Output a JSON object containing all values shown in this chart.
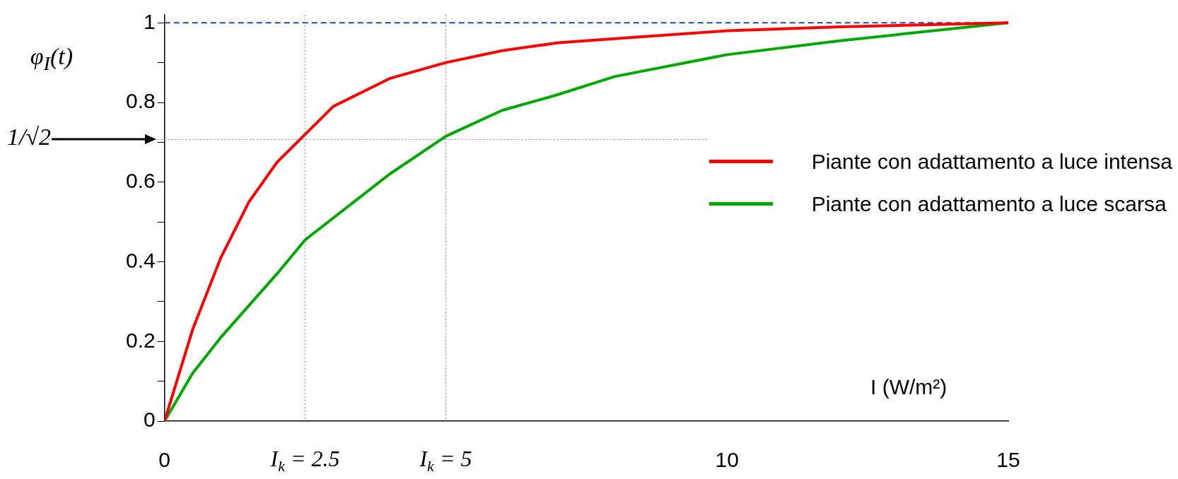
{
  "chart_data": {
    "type": "line",
    "xlabel": "I (W/m²)",
    "ylabel": "φ$_{I}$(t)",
    "xlim": [
      0,
      15
    ],
    "xticks": [
      0,
      {
        "value": 2.5,
        "label": "I$_{k}$ = 2.5"
      },
      {
        "value": 5,
        "label": "I$_{k}$ = 5"
      },
      10,
      15
    ],
    "ylim": [
      0,
      1.02
    ],
    "yticks": [
      0,
      {
        "value": 0.1,
        "label": null
      },
      0.2,
      {
        "value": 0.3,
        "label": null
      },
      0.4,
      {
        "value": 0.5,
        "label": null
      },
      0.6,
      {
        "value": 0.7,
        "label": null
      },
      0.8,
      {
        "value": 0.9,
        "label": null
      },
      1
    ],
    "series": [
      {
        "name": "Piante con adattamento a luce intensa",
        "color": "#ff0000",
        "x": [
          0,
          0.5,
          1,
          1.5,
          2,
          2.5,
          3,
          4,
          5,
          6,
          7,
          8,
          10,
          12,
          15
        ],
        "values": [
          0,
          0.23,
          0.41,
          0.55,
          0.65,
          0.72,
          0.79,
          0.86,
          0.9,
          0.93,
          0.95,
          0.96,
          0.98,
          0.99,
          1.0
        ]
      },
      {
        "name": "Piante con adattamento a luce scarsa",
        "color": "#00aa00",
        "x": [
          0,
          0.5,
          1,
          2,
          2.5,
          3,
          4,
          5,
          6,
          7,
          8,
          10,
          12,
          15
        ],
        "values": [
          0,
          0.12,
          0.21,
          0.37,
          0.455,
          0.51,
          0.62,
          0.715,
          0.78,
          0.82,
          0.865,
          0.92,
          0.955,
          1.0
        ]
      }
    ],
    "ref_lines": [
      {
        "axis": "y",
        "value": 1,
        "color": "#2244cc",
        "line_style": "dashed"
      },
      {
        "axis": "y",
        "value": 0.707,
        "label": "1/√2",
        "color": "#888888",
        "line_style": "dotted"
      },
      {
        "axis": "x",
        "value": 2.5,
        "color": "#888888",
        "line_style": "dotted"
      },
      {
        "axis": "x",
        "value": 5,
        "color": "#888888",
        "line_style": "dotted"
      }
    ],
    "grid": false,
    "legend": "right",
    "marker": "none",
    "line_style": "solid"
  }
}
